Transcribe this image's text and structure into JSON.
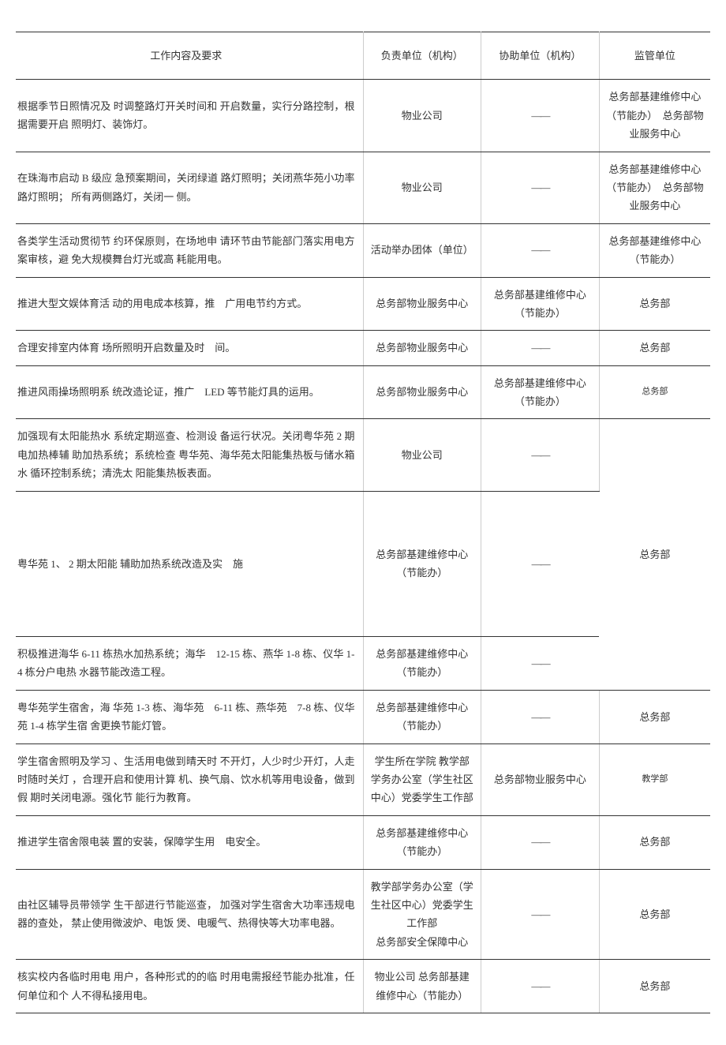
{
  "headers": {
    "content": "工作内容及要求",
    "responsible": "负责单位（机构）",
    "assist": "协助单位（机构）",
    "supervise": "监管单位"
  },
  "dash": "——",
  "rows": [
    {
      "content": "根据季节日照情况及  时调整路灯开关时间和  开启数量，实行分路控制，根据需要开启  照明灯、装饰灯。",
      "responsible": "物业公司",
      "assist": "——",
      "supervise": "总务部基建维修中心（节能办）　总务部物业服务中心"
    },
    {
      "content": "在珠海市启动 B 级应  急预案期间，关闭绿道  路灯照明；关闭燕华苑小功率路灯照明；  所有两侧路灯，关闭一  侧。",
      "responsible": "物业公司",
      "assist": "——",
      "supervise": "总务部基建维修中心（节能办）　总务部物业服务中心"
    },
    {
      "content": "各类学生活动贯彻节  约环保原则，在场地申  请环节由节能部门落实用电方案审核，避  免大规模舞台灯光或高  耗能用电。",
      "responsible": "活动举办团体（单位）",
      "assist": "——",
      "supervise": "总务部基建维修中心（节能办）"
    },
    {
      "content": "推进大型文娱体育活  动的用电成本核算，推　广用电节约方式。",
      "responsible": "总务部物业服务中心",
      "assist": "总务部基建维修中心（节能办）",
      "supervise": "总务部"
    },
    {
      "content": "合理安排室内体育  场所照明开启数量及时　间。",
      "responsible": "总务部物业服务中心",
      "assist": "——",
      "supervise": "总务部"
    },
    {
      "content": "推进风雨操场照明系  统改造论证，推广　LED 等节能灯具的运用。",
      "responsible": "总务部物业服务中心",
      "assist": "总务部基建维修中心（节能办）",
      "supervise": "总务部",
      "supervise_small": true
    },
    {
      "content": "加强现有太阳能热水  系统定期巡查、检测设  备运行状况。关闭粤华苑 2 期电加热棒辅  助加热系统；系统检查  粤华苑、海华苑太阳能集热板与储水箱水  循环控制系统；清洗太  阳能集热板表面。",
      "responsible": "物业公司",
      "assist": "——",
      "supervise": "总务部",
      "merge_supervise": 3
    },
    {
      "content": "粤华苑 1、 2 期太阳能  辅助加热系统改造及实　施",
      "responsible": "总务部基建维修中心（节能办）",
      "assist": "——",
      "tall": true
    },
    {
      "content": "积极推进海华 6-11 栋热水加热系统；海华　12-15 栋、燕华  1-8 栋、仪华 1-4 栋分户电热  水器节能改造工程。",
      "responsible": "总务部基建维修中心（节能办）",
      "assist": "——"
    },
    {
      "content": "粤华苑学生宿舍，海  华苑 1-3 栋、海华苑　6-11 栋、燕华苑　7-8 栋、仪华苑 1-4 栋学生宿  舍更换节能灯管。",
      "responsible": "总务部基建维修中心（节能办）",
      "assist": "——",
      "supervise": "总务部"
    },
    {
      "content": "学生宿舍照明及学习  、生活用电做到晴天时  不开灯，人少时少开灯，人走时随时关灯  ，合理开启和使用计算  机、换气扇、饮水机等用电设备，做到假  期时关闭电源。强化节  能行为教育。",
      "responsible": "学生所在学院  教学部学务办公室（学生社区中心）党委学生工作部",
      "assist": "总务部物业服务中心",
      "supervise": "教学部",
      "supervise_small": true
    },
    {
      "content": "推进学生宿舍限电装  置的安装，保障学生用　电安全。",
      "responsible": "总务部基建维修中心（节能办）",
      "assist": "——",
      "supervise": "总务部"
    },
    {
      "content": "由社区辅导员带领学  生干部进行节能巡查，  加强对学生宿舍大功率违规电器的查处，  禁止使用微波炉、电饭  煲、电暖气、热得快等大功率电器。",
      "responsible": "教学部学务办公室（学生社区中心）党委学生工作部\n总务部安全保障中心",
      "assist": "——",
      "supervise": "总务部"
    },
    {
      "content": "核实校内各临时用电  用户，各种形式的的临  时用电需报经节能办批准，任何单位和个  人不得私接用电。",
      "responsible": "物业公司  总务部基建维修中心（节能办）",
      "assist": "——",
      "supervise": "总务部"
    }
  ]
}
